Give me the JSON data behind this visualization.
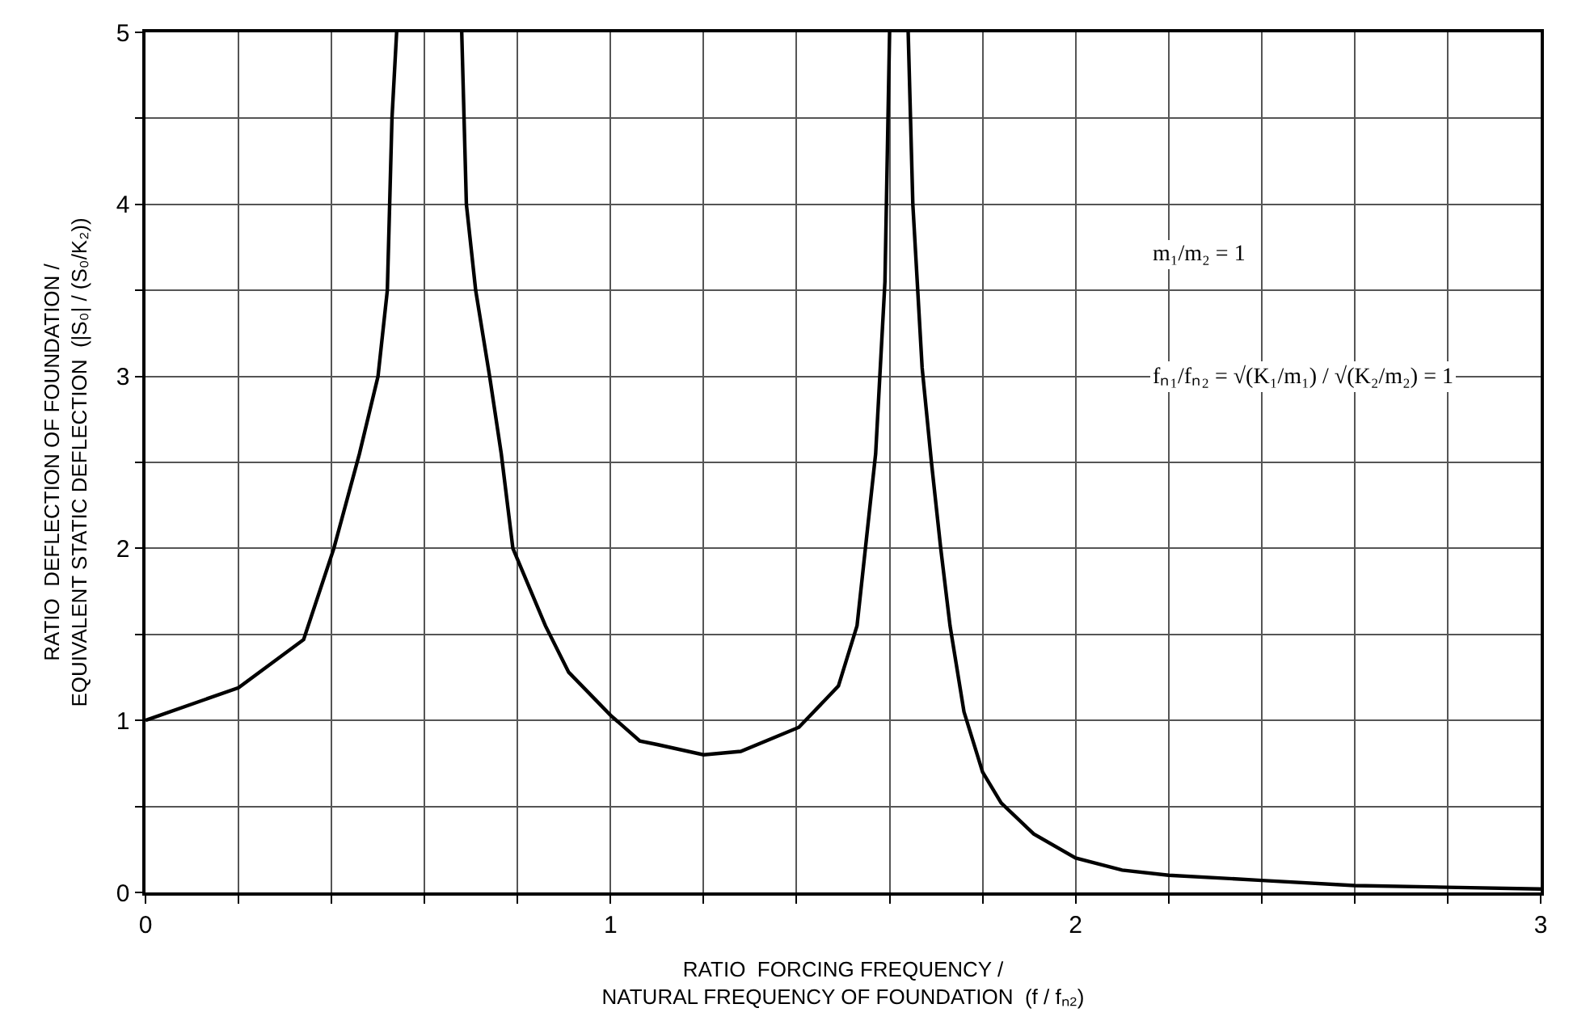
{
  "chart_data": {
    "type": "line",
    "xlabel": "RATIO  FORCING FREQUENCY /\nNATURAL FREQUENCY OF FOUNDATION  (f / fₙ₂)",
    "ylabel": "RATIO  DEFLECTION OF FOUNDATION /\nEQUIVALENT STATIC DEFLECTION  (|S₀| / (S₀/K₂))",
    "annotations": [
      "m₁/m₂ = 1",
      "fₙ₁/fₙ₂ = √(K₁/m₁) / √(K₂/m₂) = 1"
    ],
    "series": [
      {
        "color": "#000000",
        "x": [
          0,
          0.2,
          0.34,
          0.405,
          0.46,
          0.5,
          0.52,
          0.53,
          0.54,
          0.61,
          0.68,
          0.69,
          0.71,
          0.74,
          0.765,
          0.79,
          0.86,
          0.91,
          1.0,
          1.063,
          1.1,
          1.2,
          1.28,
          1.405,
          1.49,
          1.53,
          1.55,
          1.57,
          1.59,
          1.6,
          1.615,
          1.64,
          1.65,
          1.67,
          1.69,
          1.71,
          1.73,
          1.76,
          1.8,
          1.84,
          1.91,
          2.0,
          2.1,
          2.2,
          2.4,
          2.6,
          2.8,
          3.0
        ],
        "values": [
          1.0,
          1.19,
          1.47,
          2.0,
          2.55,
          3.0,
          3.5,
          4.5,
          5.0,
          null,
          5.0,
          4.0,
          3.5,
          3.0,
          2.55,
          2.0,
          1.55,
          1.28,
          1.03,
          0.88,
          0.86,
          0.8,
          0.82,
          0.96,
          1.2,
          1.55,
          2.05,
          2.55,
          3.55,
          5.0,
          null,
          5.0,
          4.0,
          3.05,
          2.5,
          2.0,
          1.55,
          1.05,
          0.7,
          0.52,
          0.34,
          0.2,
          0.13,
          0.1,
          0.07,
          0.04,
          0.03,
          0.02
        ]
      }
    ],
    "xlim": [
      0,
      3
    ],
    "ylim": [
      0,
      5
    ],
    "xticks": [
      0,
      {
        "value": 0.2,
        "label": null
      },
      {
        "value": 0.4,
        "label": null
      },
      {
        "value": 0.6,
        "label": null
      },
      {
        "value": 0.8,
        "label": null
      },
      1,
      {
        "value": 1.2,
        "label": null
      },
      {
        "value": 1.4,
        "label": null
      },
      {
        "value": 1.6,
        "label": null
      },
      {
        "value": 1.8,
        "label": null
      },
      2,
      {
        "value": 2.2,
        "label": null
      },
      {
        "value": 2.4,
        "label": null
      },
      {
        "value": 2.6,
        "label": null
      },
      {
        "value": 2.8,
        "label": null
      },
      3
    ],
    "yticks": [
      0,
      {
        "value": 0.5,
        "label": null
      },
      1,
      {
        "value": 1.5,
        "label": null
      },
      2,
      {
        "value": 2.5,
        "label": null
      },
      3,
      {
        "value": 3.5,
        "label": null
      },
      4,
      {
        "value": 4.5,
        "label": null
      },
      5
    ],
    "grid": true,
    "marker": "none",
    "line_style": "solid"
  }
}
